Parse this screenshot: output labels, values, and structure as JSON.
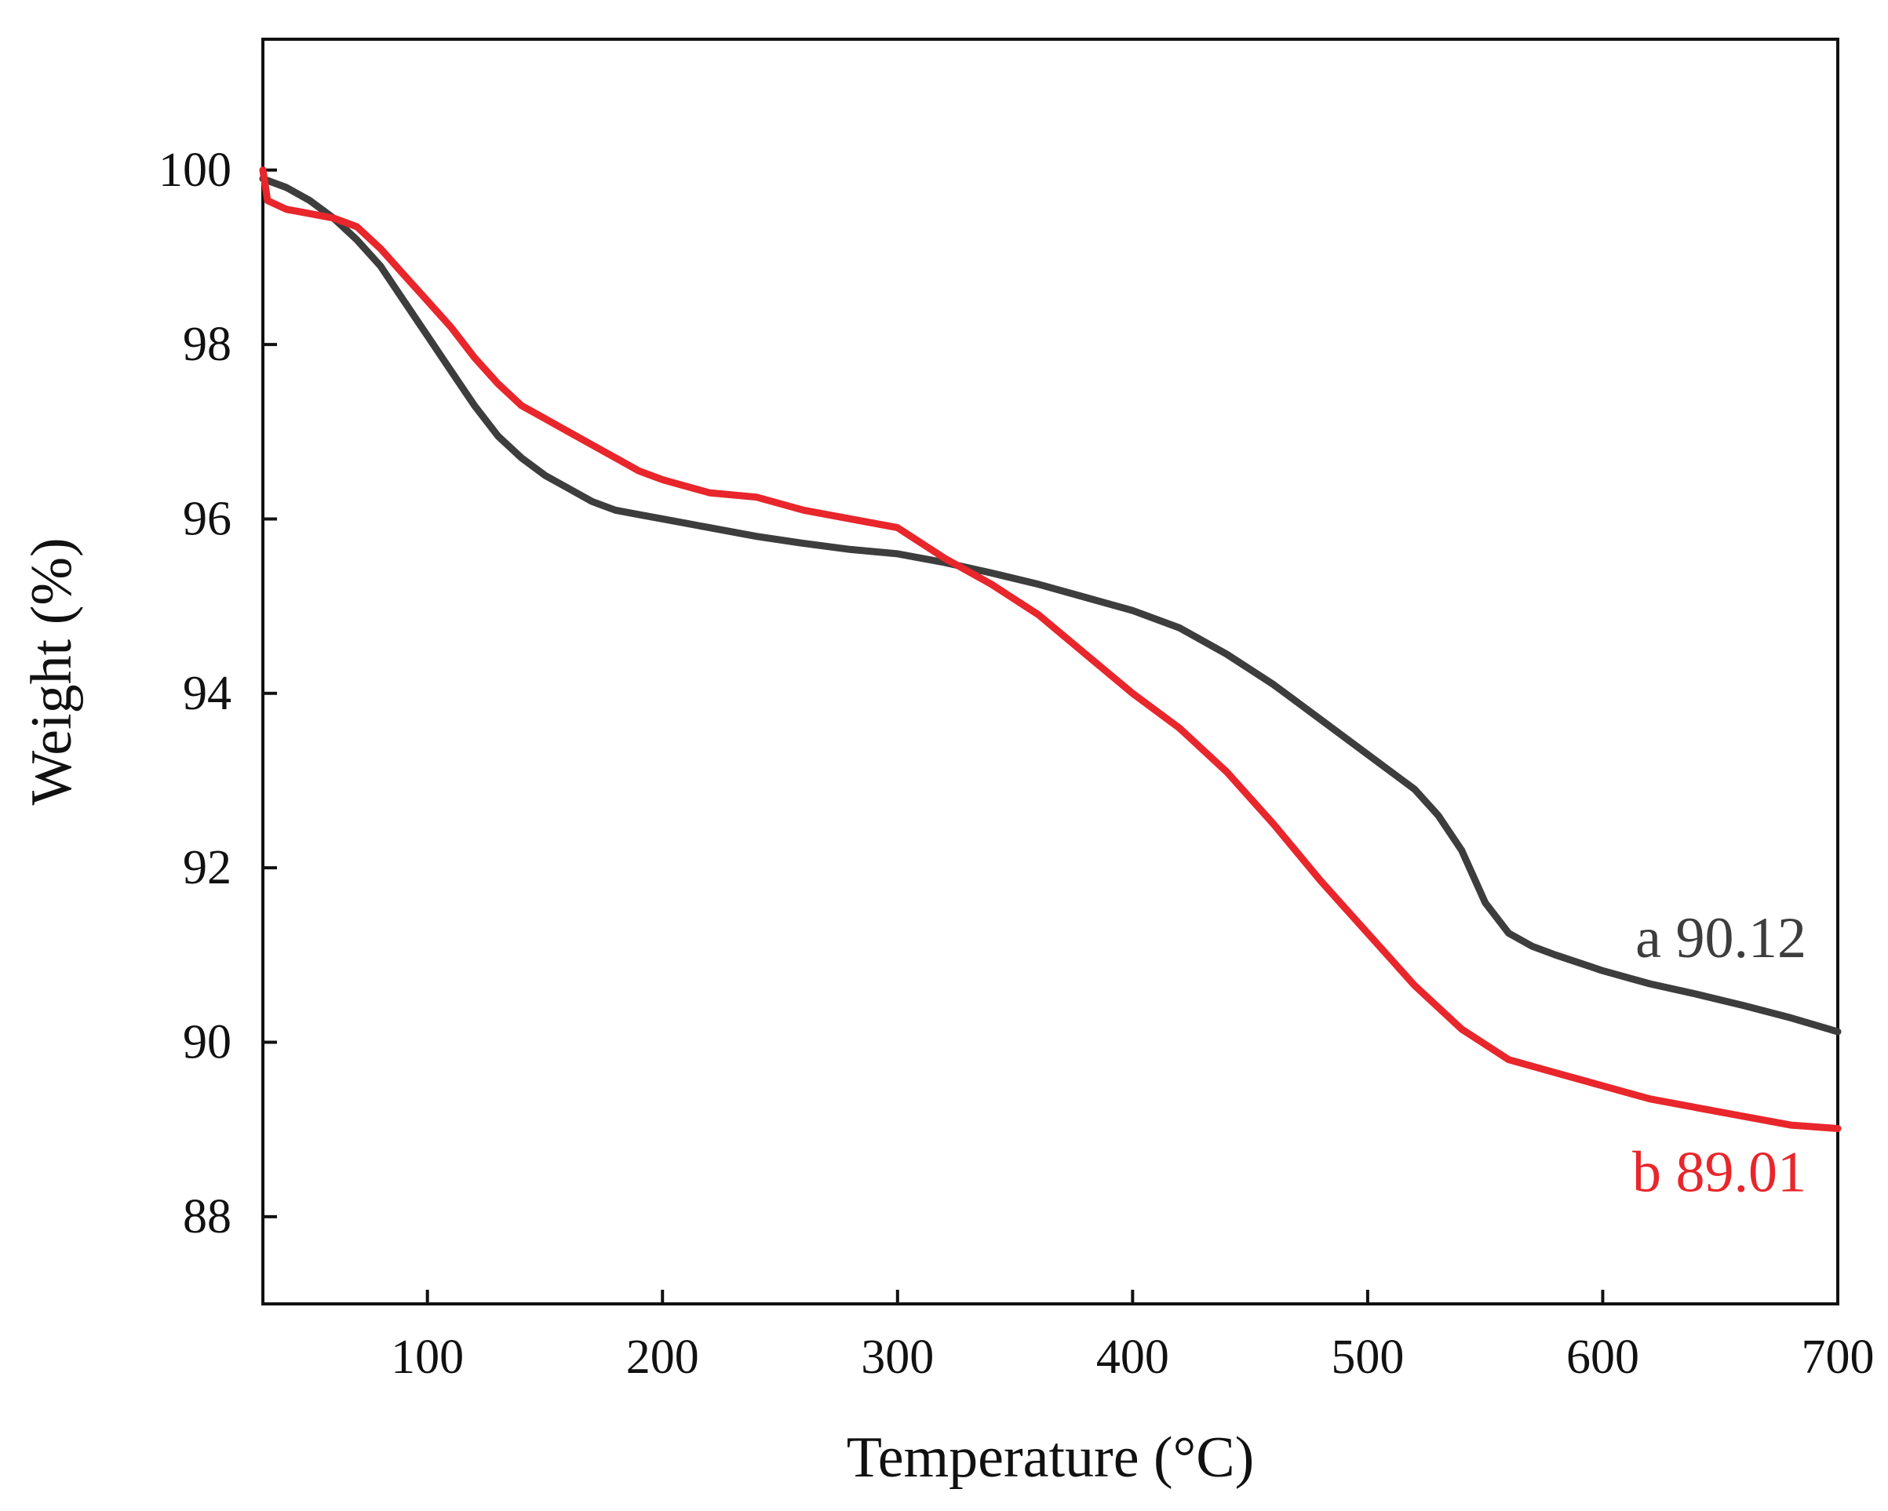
{
  "chart_data": {
    "type": "line",
    "title": "",
    "xlabel": "Temperature (°C)",
    "ylabel": "Weight (%)",
    "xlim": [
      30,
      700
    ],
    "ylim": [
      87,
      101.5
    ],
    "xticks": [
      100,
      200,
      300,
      400,
      500,
      600,
      700
    ],
    "yticks": [
      88,
      90,
      92,
      94,
      96,
      98,
      100
    ],
    "grid": false,
    "series": [
      {
        "name": "a",
        "end_label": "a 90.12",
        "color": "#3d3d3d",
        "points": [
          [
            30,
            99.9
          ],
          [
            40,
            99.8
          ],
          [
            50,
            99.65
          ],
          [
            60,
            99.45
          ],
          [
            70,
            99.2
          ],
          [
            80,
            98.9
          ],
          [
            90,
            98.5
          ],
          [
            100,
            98.1
          ],
          [
            110,
            97.7
          ],
          [
            120,
            97.3
          ],
          [
            130,
            96.95
          ],
          [
            140,
            96.7
          ],
          [
            150,
            96.5
          ],
          [
            160,
            96.35
          ],
          [
            170,
            96.2
          ],
          [
            180,
            96.1
          ],
          [
            190,
            96.05
          ],
          [
            200,
            96.0
          ],
          [
            220,
            95.9
          ],
          [
            240,
            95.8
          ],
          [
            260,
            95.72
          ],
          [
            280,
            95.65
          ],
          [
            300,
            95.6
          ],
          [
            320,
            95.5
          ],
          [
            340,
            95.38
          ],
          [
            360,
            95.25
          ],
          [
            380,
            95.1
          ],
          [
            400,
            94.95
          ],
          [
            420,
            94.75
          ],
          [
            440,
            94.45
          ],
          [
            460,
            94.1
          ],
          [
            480,
            93.7
          ],
          [
            500,
            93.3
          ],
          [
            520,
            92.9
          ],
          [
            530,
            92.6
          ],
          [
            540,
            92.2
          ],
          [
            550,
            91.6
          ],
          [
            560,
            91.25
          ],
          [
            570,
            91.1
          ],
          [
            580,
            91.0
          ],
          [
            600,
            90.82
          ],
          [
            620,
            90.67
          ],
          [
            640,
            90.55
          ],
          [
            660,
            90.42
          ],
          [
            680,
            90.28
          ],
          [
            700,
            90.12
          ]
        ]
      },
      {
        "name": "b",
        "end_label": "b 89.01",
        "color": "#e8262b",
        "points": [
          [
            30,
            100.0
          ],
          [
            32,
            99.65
          ],
          [
            40,
            99.55
          ],
          [
            50,
            99.5
          ],
          [
            60,
            99.45
          ],
          [
            70,
            99.35
          ],
          [
            80,
            99.1
          ],
          [
            90,
            98.8
          ],
          [
            100,
            98.5
          ],
          [
            110,
            98.2
          ],
          [
            120,
            97.85
          ],
          [
            130,
            97.55
          ],
          [
            140,
            97.3
          ],
          [
            150,
            97.15
          ],
          [
            160,
            97.0
          ],
          [
            170,
            96.85
          ],
          [
            180,
            96.7
          ],
          [
            190,
            96.55
          ],
          [
            200,
            96.45
          ],
          [
            220,
            96.3
          ],
          [
            240,
            96.25
          ],
          [
            260,
            96.1
          ],
          [
            280,
            96.0
          ],
          [
            300,
            95.9
          ],
          [
            320,
            95.55
          ],
          [
            340,
            95.25
          ],
          [
            360,
            94.9
          ],
          [
            380,
            94.45
          ],
          [
            400,
            94.0
          ],
          [
            420,
            93.6
          ],
          [
            440,
            93.1
          ],
          [
            460,
            92.5
          ],
          [
            480,
            91.85
          ],
          [
            500,
            91.25
          ],
          [
            520,
            90.65
          ],
          [
            540,
            90.15
          ],
          [
            560,
            89.8
          ],
          [
            580,
            89.65
          ],
          [
            600,
            89.5
          ],
          [
            620,
            89.35
          ],
          [
            640,
            89.25
          ],
          [
            660,
            89.15
          ],
          [
            680,
            89.05
          ],
          [
            700,
            89.01
          ]
        ]
      }
    ]
  }
}
